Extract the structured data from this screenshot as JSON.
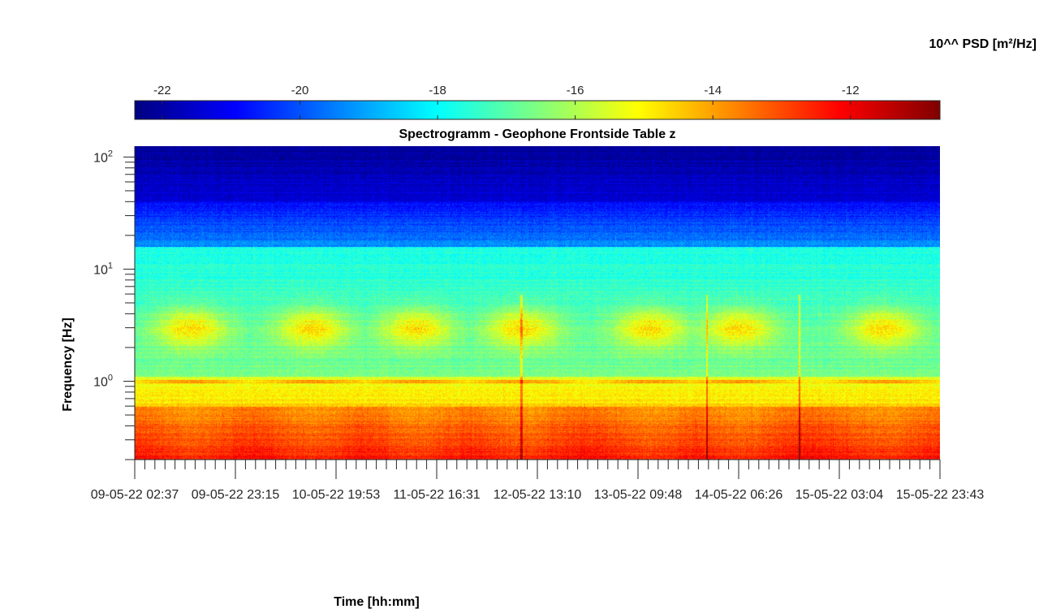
{
  "chart_data": {
    "type": "heatmap",
    "title": "Spectrogramm - Geophone Frontside Table z",
    "xlabel": "Time [hh:mm]",
    "ylabel": "Frequency [Hz]",
    "colorbar_label": "10^^ PSD [m²/Hz]",
    "colormap": "jet",
    "y_scale": "log",
    "ylim": [
      0.2,
      125
    ],
    "color_range": [
      -22.4,
      -10.7
    ],
    "colorbar_ticks": [
      "-22",
      "-20",
      "-18",
      "-16",
      "-14",
      "-12"
    ],
    "colorbar_tick_values": [
      -22,
      -20,
      -18,
      -16,
      -14,
      -12
    ],
    "y_ticks": [
      {
        "value": 100,
        "base": "10",
        "exp": "2"
      },
      {
        "value": 10,
        "base": "10",
        "exp": "1"
      },
      {
        "value": 1,
        "base": "10",
        "exp": "0"
      }
    ],
    "x_tick_labels": [
      "09-05-22 02:37",
      "09-05-22 23:15",
      "10-05-22 19:53",
      "11-05-22 16:31",
      "12-05-22 13:10",
      "13-05-22 09:48",
      "14-05-22 06:26",
      "15-05-22 03:04",
      "15-05-22 23:43"
    ],
    "activity_bursts_hz_band": [
      2,
      6
    ],
    "activity_bursts_time_fraction": [
      0.07,
      0.22,
      0.35,
      0.48,
      0.64,
      0.75,
      0.93
    ],
    "vertical_spikes_time_fraction": [
      0.48,
      0.71,
      0.825
    ],
    "persistent_line_hz": 1.0,
    "grid": false
  }
}
